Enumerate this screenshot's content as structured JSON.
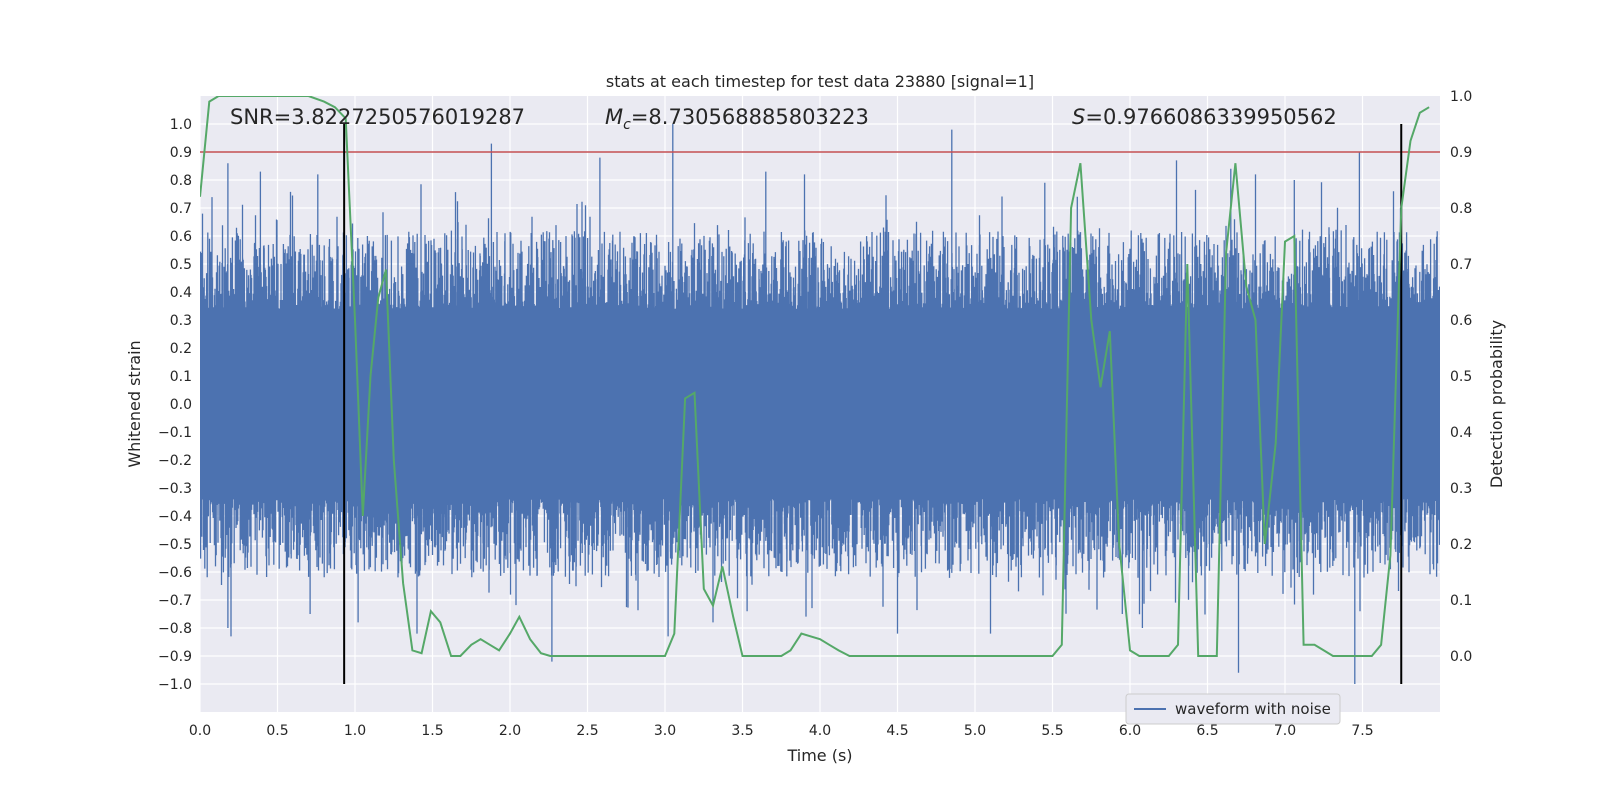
{
  "chart_data": {
    "type": "line",
    "title": "stats at each timestep for test data 23880 [signal=1]",
    "xlabel": "Time (s)",
    "ylabel_left": "Whitened strain",
    "ylabel_right": "Detection probability",
    "xlim": [
      0.0,
      8.0
    ],
    "ylim_left": [
      -1.1,
      1.1
    ],
    "ylim_right": [
      -0.1,
      1.0
    ],
    "xticks": [
      "0.0",
      "0.5",
      "1.0",
      "1.5",
      "2.0",
      "2.5",
      "3.0",
      "3.5",
      "4.0",
      "4.5",
      "5.0",
      "5.5",
      "6.0",
      "6.5",
      "7.0",
      "7.5"
    ],
    "yticks_left": [
      "1.0",
      "0.9",
      "0.8",
      "0.7",
      "0.6",
      "0.5",
      "0.4",
      "0.3",
      "0.2",
      "0.1",
      "0.0",
      "−0.1",
      "−0.2",
      "−0.3",
      "−0.4",
      "−0.5",
      "−0.6",
      "−0.7",
      "−0.8",
      "−0.9",
      "−1.0"
    ],
    "yticks_right": [
      "1.0",
      "0.9",
      "0.8",
      "0.7",
      "0.6",
      "0.5",
      "0.4",
      "0.3",
      "0.2",
      "0.1",
      "0.0"
    ],
    "grid": true,
    "legend": {
      "position": "lower-right",
      "entries": [
        "waveform with noise"
      ]
    },
    "annotations": {
      "snr_label": "SNR",
      "snr_value": "=3.8227250576019287",
      "mc_symbol": "M",
      "mc_sub": "c",
      "mc_value": "=8.730568885803223",
      "s_symbol": "S",
      "s_value": "=0.9766086339950562"
    },
    "threshold": {
      "value_right_axis": 0.9,
      "color": "#c44e52"
    },
    "signal_window": {
      "start": 0.93,
      "end": 7.75,
      "ymin": -1.0,
      "ymax": 1.0,
      "color": "#000000"
    },
    "waveform": {
      "name": "waveform with noise",
      "color": "#4c72b0",
      "peaks_pos": [
        [
          0.18,
          0.86
        ],
        [
          0.39,
          0.83
        ],
        [
          0.76,
          0.82
        ],
        [
          1.08,
          0.6
        ],
        [
          1.35,
          0.56
        ],
        [
          1.88,
          0.93
        ],
        [
          2.58,
          0.88
        ],
        [
          3.05,
          1.0
        ],
        [
          3.65,
          0.83
        ],
        [
          3.9,
          0.82
        ],
        [
          4.85,
          0.98
        ],
        [
          5.45,
          0.79
        ],
        [
          5.66,
          0.74
        ],
        [
          6.3,
          0.87
        ],
        [
          6.65,
          0.84
        ],
        [
          6.81,
          0.82
        ],
        [
          7.06,
          0.8
        ],
        [
          7.48,
          0.9
        ],
        [
          7.7,
          0.76
        ]
      ],
      "peaks_neg": [
        [
          0.1,
          -0.58
        ],
        [
          0.18,
          -0.8
        ],
        [
          0.2,
          -0.83
        ],
        [
          0.71,
          -0.75
        ],
        [
          1.02,
          -0.78
        ],
        [
          1.4,
          -0.82
        ],
        [
          2.27,
          -0.92
        ],
        [
          3.02,
          -0.83
        ],
        [
          3.31,
          -0.78
        ],
        [
          3.53,
          -0.74
        ],
        [
          4.5,
          -0.82
        ],
        [
          5.1,
          -0.82
        ],
        [
          5.95,
          -0.75
        ],
        [
          6.08,
          -0.8
        ],
        [
          6.7,
          -0.96
        ],
        [
          7.45,
          -1.0
        ]
      ]
    },
    "detection_probability": {
      "color": "#55a868",
      "x": [
        0.0,
        0.06,
        0.12,
        0.2,
        0.3,
        0.4,
        0.5,
        0.6,
        0.7,
        0.8,
        0.87,
        0.94,
        1.0,
        1.05,
        1.1,
        1.15,
        1.2,
        1.25,
        1.31,
        1.37,
        1.43,
        1.49,
        1.55,
        1.62,
        1.68,
        1.75,
        1.81,
        1.87,
        1.93,
        2.0,
        2.06,
        2.13,
        2.2,
        2.26,
        2.5,
        2.75,
        2.82,
        2.9,
        3.0,
        3.06,
        3.13,
        3.19,
        3.25,
        3.31,
        3.37,
        3.44,
        3.5,
        3.56,
        3.75,
        3.81,
        3.88,
        4.0,
        4.06,
        4.12,
        4.19,
        4.25,
        4.5,
        4.75,
        5.0,
        5.25,
        5.5,
        5.56,
        5.62,
        5.68,
        5.75,
        5.81,
        5.87,
        5.93,
        6.0,
        6.06,
        6.12,
        6.19,
        6.25,
        6.31,
        6.37,
        6.44,
        6.5,
        6.56,
        6.62,
        6.68,
        6.75,
        6.81,
        6.87,
        6.94,
        7.0,
        7.06,
        7.12,
        7.19,
        7.25,
        7.31,
        7.37,
        7.44,
        7.5,
        7.56,
        7.62,
        7.68,
        7.75,
        7.81,
        7.87,
        7.93
      ],
      "y": [
        0.82,
        0.99,
        1.0,
        1.0,
        1.0,
        1.0,
        1.0,
        1.0,
        1.0,
        0.99,
        0.98,
        0.96,
        0.6,
        0.25,
        0.5,
        0.64,
        0.69,
        0.35,
        0.13,
        0.01,
        0.005,
        0.08,
        0.06,
        0.0,
        0.0,
        0.02,
        0.03,
        0.02,
        0.01,
        0.04,
        0.07,
        0.03,
        0.005,
        0.0,
        0.0,
        0.0,
        0.0,
        0.0,
        0.0,
        0.04,
        0.46,
        0.47,
        0.12,
        0.09,
        0.16,
        0.07,
        0.0,
        0.0,
        0.0,
        0.01,
        0.04,
        0.03,
        0.02,
        0.01,
        0.0,
        0.0,
        0.0,
        0.0,
        0.0,
        0.0,
        0.0,
        0.02,
        0.8,
        0.88,
        0.6,
        0.48,
        0.58,
        0.2,
        0.01,
        0.0,
        0.0,
        0.0,
        0.0,
        0.02,
        0.7,
        0.0,
        0.0,
        0.0,
        0.72,
        0.88,
        0.66,
        0.6,
        0.2,
        0.38,
        0.74,
        0.75,
        0.02,
        0.02,
        0.01,
        0.0,
        0.0,
        0.0,
        0.0,
        0.0,
        0.02,
        0.18,
        0.8,
        0.92,
        0.97,
        0.98
      ]
    }
  }
}
